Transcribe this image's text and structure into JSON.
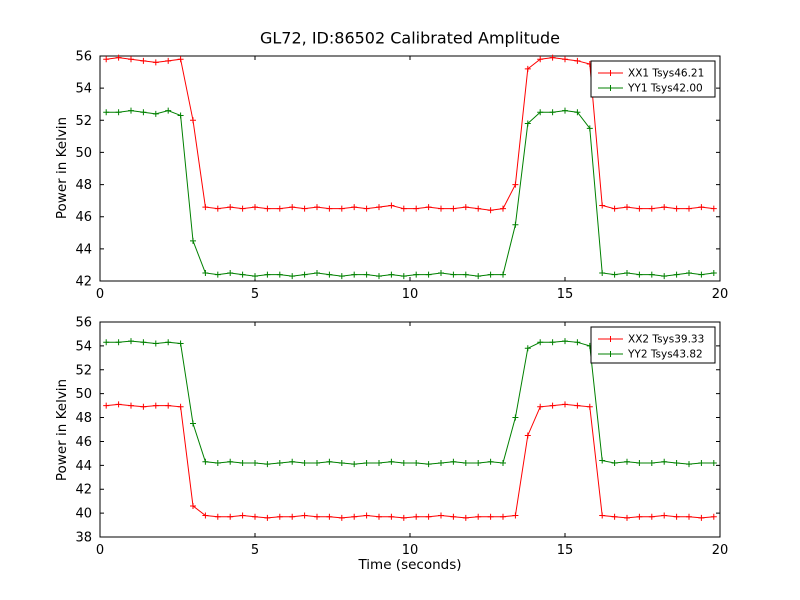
{
  "figure_title": "GL72, ID:86502 Calibrated Amplitude",
  "colors": {
    "series_red": "#ff0000",
    "series_green": "#008000",
    "axis": "#000000",
    "background": "#ffffff"
  },
  "chart_data": [
    {
      "type": "line",
      "title": "GL72, ID:86502 Calibrated Amplitude",
      "xlabel": "",
      "ylabel": "Power in Kelvin",
      "xlim": [
        0,
        20
      ],
      "ylim": [
        42,
        56
      ],
      "xticks": [
        0,
        5,
        10,
        15,
        20
      ],
      "yticks": [
        42,
        44,
        46,
        48,
        50,
        52,
        54,
        56
      ],
      "grid": false,
      "legend_position": "upper right",
      "marker": "plus",
      "x": [
        0.2,
        0.6,
        1.0,
        1.4,
        1.8,
        2.2,
        2.6,
        3.0,
        3.4,
        3.8,
        4.2,
        4.6,
        5.0,
        5.4,
        5.8,
        6.2,
        6.6,
        7.0,
        7.4,
        7.8,
        8.2,
        8.6,
        9.0,
        9.4,
        9.8,
        10.2,
        10.6,
        11.0,
        11.4,
        11.8,
        12.2,
        12.6,
        13.0,
        13.4,
        13.8,
        14.2,
        14.6,
        15.0,
        15.4,
        15.8,
        16.2,
        16.6,
        17.0,
        17.4,
        17.8,
        18.2,
        18.6,
        19.0,
        19.4,
        19.8
      ],
      "series": [
        {
          "name": "XX1 Tsys46.21",
          "color": "#ff0000",
          "values": [
            55.8,
            55.9,
            55.8,
            55.7,
            55.6,
            55.7,
            55.8,
            52.0,
            46.6,
            46.5,
            46.6,
            46.5,
            46.6,
            46.5,
            46.5,
            46.6,
            46.5,
            46.6,
            46.5,
            46.5,
            46.6,
            46.5,
            46.6,
            46.7,
            46.5,
            46.5,
            46.6,
            46.5,
            46.5,
            46.6,
            46.5,
            46.4,
            46.5,
            48.0,
            55.2,
            55.8,
            55.9,
            55.8,
            55.7,
            55.5,
            46.7,
            46.5,
            46.6,
            46.5,
            46.5,
            46.6,
            46.5,
            46.5,
            46.6,
            46.5
          ]
        },
        {
          "name": "YY1 Tsys42.00",
          "color": "#008000",
          "values": [
            52.5,
            52.5,
            52.6,
            52.5,
            52.4,
            52.6,
            52.3,
            44.5,
            42.5,
            42.4,
            42.5,
            42.4,
            42.3,
            42.4,
            42.4,
            42.3,
            42.4,
            42.5,
            42.4,
            42.3,
            42.4,
            42.4,
            42.3,
            42.4,
            42.3,
            42.4,
            42.4,
            42.5,
            42.4,
            42.4,
            42.3,
            42.4,
            42.4,
            45.5,
            51.8,
            52.5,
            52.5,
            52.6,
            52.5,
            51.5,
            42.5,
            42.4,
            42.5,
            42.4,
            42.4,
            42.3,
            42.4,
            42.5,
            42.4,
            42.5
          ]
        }
      ]
    },
    {
      "type": "line",
      "title": "",
      "xlabel": "Time (seconds)",
      "ylabel": "Power in Kelvin",
      "xlim": [
        0,
        20
      ],
      "ylim": [
        38,
        56
      ],
      "xticks": [
        0,
        5,
        10,
        15,
        20
      ],
      "yticks": [
        38,
        40,
        42,
        44,
        46,
        48,
        50,
        52,
        54,
        56
      ],
      "grid": false,
      "legend_position": "upper right",
      "marker": "plus",
      "x": [
        0.2,
        0.6,
        1.0,
        1.4,
        1.8,
        2.2,
        2.6,
        3.0,
        3.4,
        3.8,
        4.2,
        4.6,
        5.0,
        5.4,
        5.8,
        6.2,
        6.6,
        7.0,
        7.4,
        7.8,
        8.2,
        8.6,
        9.0,
        9.4,
        9.8,
        10.2,
        10.6,
        11.0,
        11.4,
        11.8,
        12.2,
        12.6,
        13.0,
        13.4,
        13.8,
        14.2,
        14.6,
        15.0,
        15.4,
        15.8,
        16.2,
        16.6,
        17.0,
        17.4,
        17.8,
        18.2,
        18.6,
        19.0,
        19.4,
        19.8
      ],
      "series": [
        {
          "name": "XX2 Tsys39.33",
          "color": "#ff0000",
          "values": [
            49.0,
            49.1,
            49.0,
            48.9,
            49.0,
            49.0,
            48.9,
            40.6,
            39.8,
            39.7,
            39.7,
            39.8,
            39.7,
            39.6,
            39.7,
            39.7,
            39.8,
            39.7,
            39.7,
            39.6,
            39.7,
            39.8,
            39.7,
            39.7,
            39.6,
            39.7,
            39.7,
            39.8,
            39.7,
            39.6,
            39.7,
            39.7,
            39.7,
            39.8,
            46.5,
            48.9,
            49.0,
            49.1,
            49.0,
            48.9,
            39.8,
            39.7,
            39.6,
            39.7,
            39.7,
            39.8,
            39.7,
            39.7,
            39.6,
            39.7
          ]
        },
        {
          "name": "YY2 Tsys43.82",
          "color": "#008000",
          "values": [
            54.3,
            54.3,
            54.4,
            54.3,
            54.2,
            54.3,
            54.2,
            47.5,
            44.3,
            44.2,
            44.3,
            44.2,
            44.2,
            44.1,
            44.2,
            44.3,
            44.2,
            44.2,
            44.3,
            44.2,
            44.1,
            44.2,
            44.2,
            44.3,
            44.2,
            44.2,
            44.1,
            44.2,
            44.3,
            44.2,
            44.2,
            44.3,
            44.2,
            48.0,
            53.8,
            54.3,
            54.3,
            54.4,
            54.3,
            54.0,
            44.4,
            44.2,
            44.3,
            44.2,
            44.2,
            44.3,
            44.2,
            44.1,
            44.2,
            44.2
          ]
        }
      ]
    }
  ]
}
